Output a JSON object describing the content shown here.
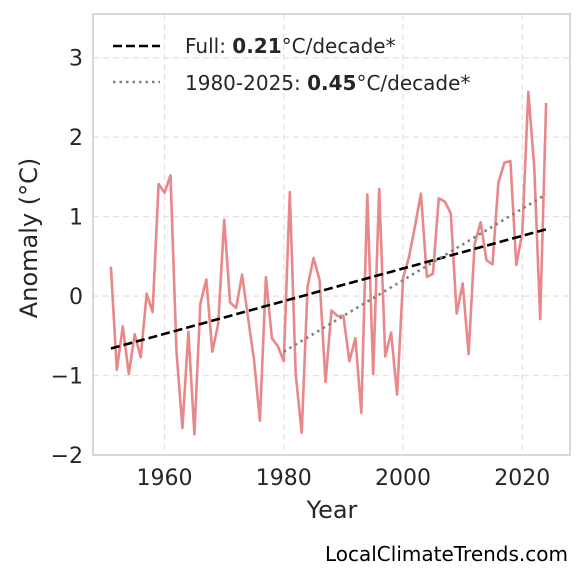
{
  "chart_data": {
    "type": "line",
    "xlabel": "Year",
    "ylabel": "Anomaly (°C)",
    "xlim": [
      1948,
      2028
    ],
    "ylim": [
      -2,
      3.55
    ],
    "xticks": [
      1960,
      1980,
      2000,
      2020
    ],
    "yticks": [
      -2,
      -1,
      0,
      1,
      2,
      3
    ],
    "ytick_labels": [
      "−2",
      "−1",
      "0",
      "1",
      "2",
      "3"
    ],
    "grid": true,
    "legend_position": "top-left",
    "series": [
      {
        "style": "solid",
        "color": "#e8888a",
        "x": [
          1951,
          1952,
          1953,
          1954,
          1955,
          1956,
          1957,
          1958,
          1959,
          1960,
          1961,
          1962,
          1963,
          1964,
          1965,
          1966,
          1967,
          1968,
          1969,
          1970,
          1971,
          1972,
          1973,
          1974,
          1975,
          1976,
          1977,
          1978,
          1979,
          1980,
          1981,
          1982,
          1983,
          1984,
          1985,
          1986,
          1987,
          1988,
          1989,
          1990,
          1991,
          1992,
          1993,
          1994,
          1995,
          1996,
          1997,
          1998,
          1999,
          2000,
          2001,
          2002,
          2003,
          2004,
          2005,
          2006,
          2007,
          2008,
          2009,
          2010,
          2011,
          2012,
          2013,
          2014,
          2015,
          2016,
          2017,
          2018,
          2019,
          2020,
          2021,
          2022,
          2023,
          2024
        ],
        "values": [
          0.37,
          -0.93,
          -0.38,
          -0.98,
          -0.48,
          -0.77,
          0.03,
          -0.2,
          1.41,
          1.3,
          1.52,
          -0.7,
          -1.66,
          -0.45,
          -1.74,
          -0.1,
          0.21,
          -0.7,
          -0.35,
          0.96,
          -0.08,
          -0.15,
          0.27,
          -0.27,
          -0.8,
          -1.57,
          0.24,
          -0.53,
          -0.63,
          -0.82,
          1.31,
          -0.98,
          -1.72,
          0.12,
          0.48,
          0.2,
          -1.08,
          -0.18,
          -0.25,
          -0.25,
          -0.82,
          -0.53,
          -1.47,
          1.28,
          -0.98,
          1.35,
          -0.76,
          -0.46,
          -1.24,
          0.23,
          0.49,
          0.88,
          1.29,
          0.24,
          0.28,
          1.23,
          1.19,
          1.04,
          -0.22,
          0.16,
          -0.73,
          0.65,
          0.93,
          0.45,
          0.4,
          1.43,
          1.68,
          1.7,
          0.39,
          0.8,
          2.57,
          1.64,
          -0.29,
          2.43
        ]
      },
      {
        "name": "Full: 0.21°C/decade*",
        "style": "dashed",
        "color": "#000000",
        "x": [
          1951,
          2024
        ],
        "values": [
          -0.66,
          0.84
        ]
      },
      {
        "name": "1980-2025: 0.45°C/decade*",
        "style": "dotted",
        "color": "#808080",
        "x": [
          1980,
          2024
        ],
        "values": [
          -0.7,
          1.28
        ]
      }
    ]
  },
  "legend": {
    "full_prefix": "Full: ",
    "full_value": "0.21",
    "full_suffix": "°C/decade*",
    "recent_prefix": "1980-2025: ",
    "recent_value": "0.45",
    "recent_suffix": "°C/decade*"
  },
  "watermark": "LocalClimateTrends.com"
}
